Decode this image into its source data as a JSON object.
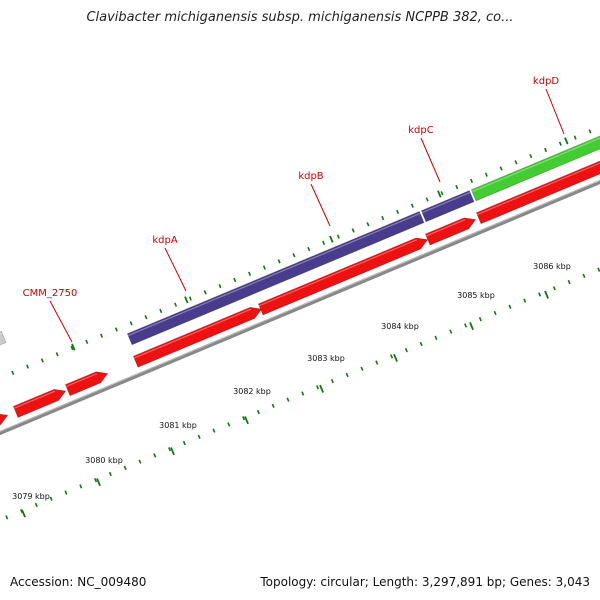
{
  "title": "Clavibacter michiganensis subsp. michiganensis NCPPB 382, co...",
  "footer": {
    "accession": "Accession: NC_009480",
    "topology": "Topology: circular; Length: 3,297,891 bp; Genes: 3,043"
  },
  "colors": {
    "cds": "#ee1111",
    "cds_dark": "#aa0000",
    "kdp_blue": "#4a3c8c",
    "kdp_green": "#44cc33",
    "gray_gene": "#cccccc",
    "backbone": "#888888",
    "tick": "#117711",
    "label": "#cc0000"
  },
  "kbp_labels": [
    "3079 kbp",
    "3080 kbp",
    "3081 kbp",
    "3082 kbp",
    "3083 kbp",
    "3084 kbp",
    "3085 kbp",
    "3086 kbp"
  ],
  "gene_labels": [
    "CMM_2750",
    "kdpA",
    "kdpB",
    "kdpC",
    "kdpD"
  ]
}
